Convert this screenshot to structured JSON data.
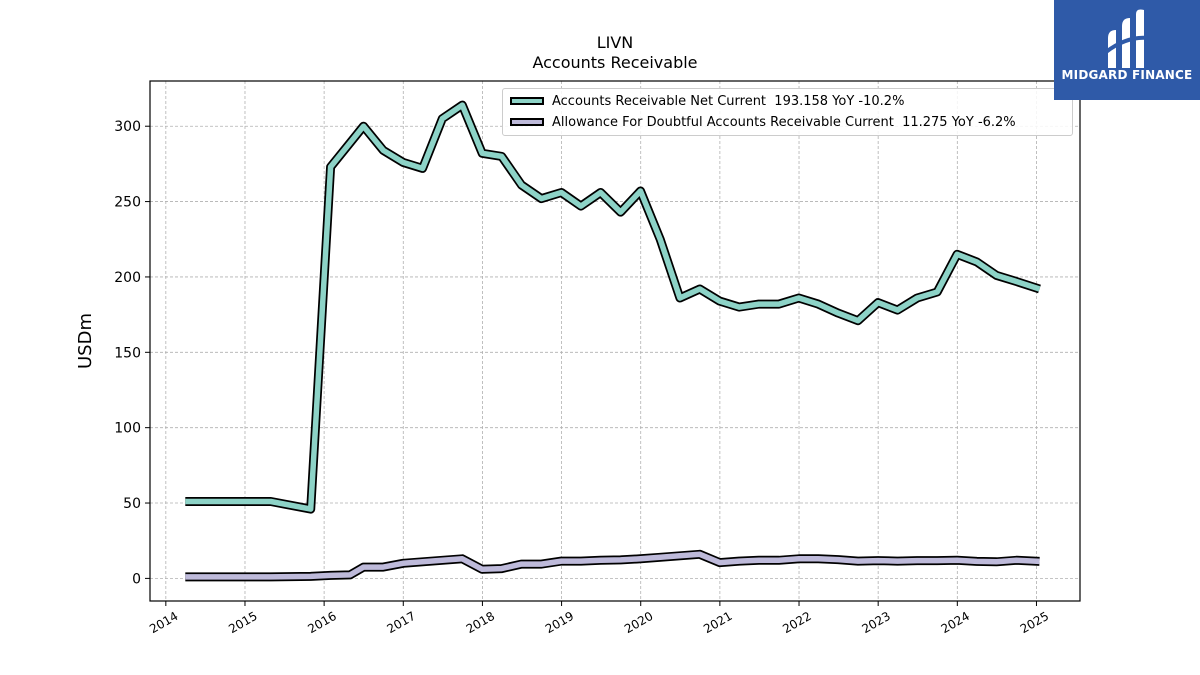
{
  "brand": {
    "name": "MIDGARD FINANCE",
    "color": "#2f5aa8"
  },
  "chart_data": {
    "type": "line",
    "title": "LIVN",
    "subtitle": "Accounts Receivable",
    "ylabel": "USDm",
    "xlabel": "",
    "ylim": [
      -15,
      330
    ],
    "yticks": [
      0,
      50,
      100,
      150,
      200,
      250,
      300
    ],
    "xlim": [
      2013.8,
      2025.55
    ],
    "xticks": [
      "2014",
      "2015",
      "2016",
      "2017",
      "2018",
      "2019",
      "2020",
      "2021",
      "2022",
      "2023",
      "2024",
      "2025"
    ],
    "grid": true,
    "legend_position": "top-right",
    "series": [
      {
        "name": "Accounts Receivable Net Current",
        "legend_label": "Accounts Receivable Net Current  193.158 YoY -10.2%",
        "color": "#8dd3c7",
        "points": [
          [
            "2014-04-01",
            51
          ],
          [
            "2015-04-30",
            51
          ],
          [
            "2015-10-31",
            46
          ],
          [
            "2016-01-31",
            273
          ],
          [
            "2016-04-30",
            289
          ],
          [
            "2016-07-01",
            300
          ],
          [
            "2016-09-30",
            284
          ],
          [
            "2016-12-31",
            276
          ],
          [
            "2017-03-31",
            272
          ],
          [
            "2017-06-30",
            305
          ],
          [
            "2017-09-30",
            314
          ],
          [
            "2017-12-31",
            282
          ],
          [
            "2018-03-31",
            280
          ],
          [
            "2018-06-30",
            261
          ],
          [
            "2018-09-30",
            252
          ],
          [
            "2018-12-31",
            256
          ],
          [
            "2019-03-31",
            247
          ],
          [
            "2019-06-30",
            256
          ],
          [
            "2019-09-30",
            243
          ],
          [
            "2019-12-31",
            257
          ],
          [
            "2020-03-31",
            225
          ],
          [
            "2020-06-30",
            186
          ],
          [
            "2020-09-30",
            192
          ],
          [
            "2020-12-31",
            184
          ],
          [
            "2021-03-31",
            180
          ],
          [
            "2021-06-30",
            182
          ],
          [
            "2021-09-30",
            182
          ],
          [
            "2021-12-31",
            186
          ],
          [
            "2022-03-31",
            182
          ],
          [
            "2022-06-30",
            176
          ],
          [
            "2022-09-30",
            171
          ],
          [
            "2022-12-31",
            183
          ],
          [
            "2023-03-31",
            178
          ],
          [
            "2023-06-30",
            186
          ],
          [
            "2023-09-30",
            190
          ],
          [
            "2023-12-31",
            215
          ],
          [
            "2024-03-31",
            210
          ],
          [
            "2024-06-30",
            201
          ],
          [
            "2024-09-30",
            197
          ],
          [
            "2025-01-15",
            192
          ]
        ]
      },
      {
        "name": "Allowance For Doubtful Accounts Receivable Current",
        "legend_label": "Allowance For Doubtful Accounts Receivable Current  11.275 YoY -6.2%",
        "color": "#bebada",
        "points": [
          [
            "2014-04-01",
            1
          ],
          [
            "2015-04-30",
            1
          ],
          [
            "2015-10-31",
            1.3
          ],
          [
            "2016-01-31",
            2
          ],
          [
            "2016-04-30",
            2.3
          ],
          [
            "2016-07-01",
            7.5
          ],
          [
            "2016-09-30",
            7.5
          ],
          [
            "2016-12-31",
            10
          ],
          [
            "2017-03-31",
            11
          ],
          [
            "2017-06-30",
            12
          ],
          [
            "2017-09-30",
            13
          ],
          [
            "2017-12-31",
            6
          ],
          [
            "2018-03-31",
            6.5
          ],
          [
            "2018-06-30",
            9.5
          ],
          [
            "2018-09-30",
            9.5
          ],
          [
            "2018-12-31",
            11.5
          ],
          [
            "2019-03-31",
            11.5
          ],
          [
            "2019-06-30",
            12
          ],
          [
            "2019-09-30",
            12.3
          ],
          [
            "2019-12-31",
            13
          ],
          [
            "2020-03-31",
            14
          ],
          [
            "2020-06-30",
            15
          ],
          [
            "2020-09-30",
            16
          ],
          [
            "2020-12-31",
            10.5
          ],
          [
            "2021-03-31",
            11.5
          ],
          [
            "2021-06-30",
            12
          ],
          [
            "2021-09-30",
            12
          ],
          [
            "2021-12-31",
            13
          ],
          [
            "2022-03-31",
            13
          ],
          [
            "2022-06-30",
            12.5
          ],
          [
            "2022-09-30",
            11.5
          ],
          [
            "2022-12-31",
            11.8
          ],
          [
            "2023-03-31",
            11.5
          ],
          [
            "2023-06-30",
            11.8
          ],
          [
            "2023-09-30",
            11.8
          ],
          [
            "2023-12-31",
            12
          ],
          [
            "2024-03-31",
            11.3
          ],
          [
            "2024-06-30",
            11
          ],
          [
            "2024-09-30",
            12
          ],
          [
            "2025-01-15",
            11.3
          ]
        ]
      }
    ]
  }
}
